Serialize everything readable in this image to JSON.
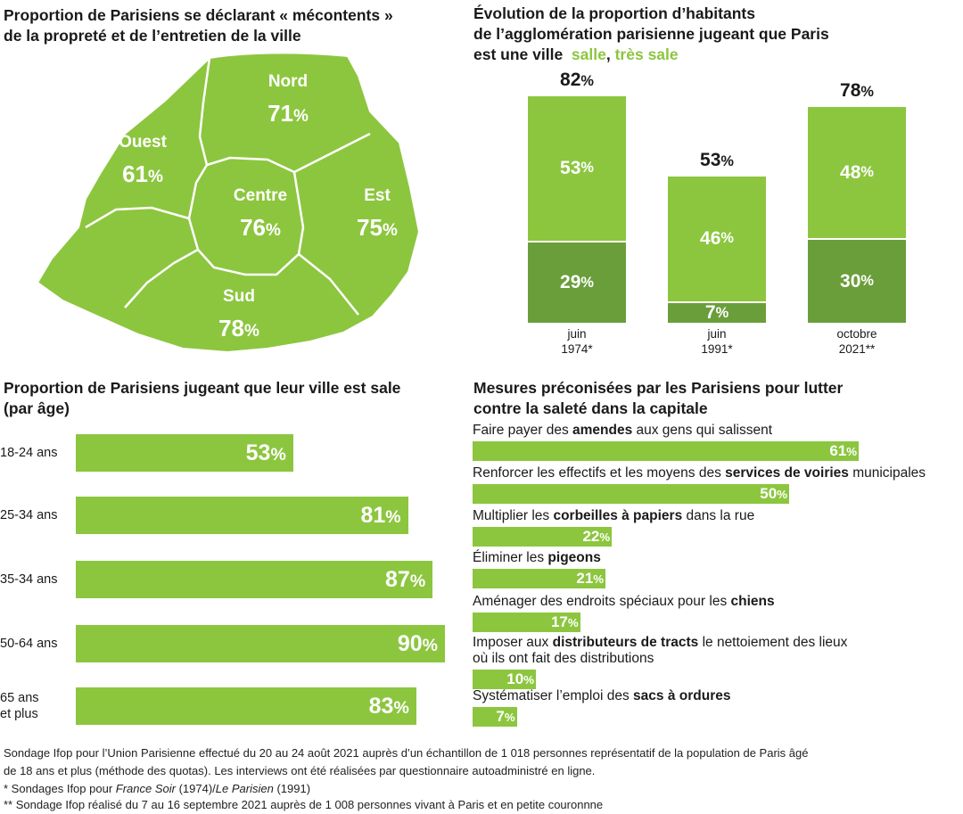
{
  "colors": {
    "light_green": "#8cc63f",
    "dark_green": "#6a9e3a",
    "map_green": "#8cc63f",
    "text": "#1a1a1a"
  },
  "map": {
    "title_line1": "Proportion de Parisiens se déclarant « mécontents »",
    "title_line2": "de la propreté et de l’entretien de la ville",
    "regions": [
      {
        "name": "Nord",
        "value": "71"
      },
      {
        "name": "Ouest",
        "value": "61"
      },
      {
        "name": "Centre",
        "value": "76"
      },
      {
        "name": "Est",
        "value": "75"
      },
      {
        "name": "Sud",
        "value": "78"
      }
    ]
  },
  "evolution": {
    "title_line1": "Évolution de la proportion d’habitants",
    "title_line2": "de l’agglomération parisienne jugeant que Paris",
    "title_line3_prefix": "est une ville",
    "legend_sale": "salle",
    "legend_sep": ",",
    "legend_tres_sale": "très sale"
  },
  "age": {
    "title_line1": "Proportion de Parisiens jugeant que leur ville est sale",
    "title_line2": "(par âge)"
  },
  "measures": {
    "title_line1": "Mesures préconisées par les Parisiens pour lutter",
    "title_line2": "contre la saleté dans la capitale"
  },
  "chart_data": [
    {
      "type": "bar",
      "title": "Évolution de la proportion d’habitants de l’agglomération parisienne jugeant que Paris est une ville salle, très sale",
      "categories": [
        "juin 1974*",
        "juin 1991*",
        "octobre 2021**"
      ],
      "category_lines": [
        [
          "juin",
          "1974*"
        ],
        [
          "juin",
          "1991*"
        ],
        [
          "octobre",
          "2021**"
        ]
      ],
      "totals": [
        82,
        53,
        78
      ],
      "series": [
        {
          "name": "très sale",
          "values": [
            29,
            7,
            30
          ]
        },
        {
          "name": "salle",
          "values": [
            53,
            46,
            48
          ]
        }
      ],
      "stacked": true,
      "ylim": [
        0,
        100
      ]
    },
    {
      "type": "bar",
      "orientation": "horizontal",
      "title": "Proportion de Parisiens jugeant que leur ville est sale (par âge)",
      "categories": [
        "18-24 ans",
        "25-34 ans",
        "35-34 ans",
        "50-64 ans",
        "65 ans et plus"
      ],
      "category_lines": [
        [
          "18-24 ans"
        ],
        [
          "25-34 ans"
        ],
        [
          "35-34 ans"
        ],
        [
          "50-64 ans"
        ],
        [
          "65 ans",
          "et plus"
        ]
      ],
      "values": [
        53,
        81,
        87,
        90,
        83
      ],
      "xlim": [
        0,
        100
      ]
    },
    {
      "type": "bar",
      "orientation": "horizontal",
      "title": "Mesures préconisées par les Parisiens pour lutter contre la saleté dans la capitale",
      "items": [
        {
          "lines": [
            [
              {
                "t": "Faire payer des "
              },
              {
                "t": "amendes",
                "b": true
              },
              {
                "t": " aux gens qui salissent"
              }
            ]
          ],
          "value": 61
        },
        {
          "lines": [
            [
              {
                "t": "Renforcer les effectifs et les moyens des "
              },
              {
                "t": "services de voiries",
                "b": true
              },
              {
                "t": " municipales"
              }
            ]
          ],
          "value": 50
        },
        {
          "lines": [
            [
              {
                "t": "Multiplier les "
              },
              {
                "t": "corbeilles à papiers",
                "b": true
              },
              {
                "t": " dans la rue"
              }
            ]
          ],
          "value": 22
        },
        {
          "lines": [
            [
              {
                "t": "Éliminer les "
              },
              {
                "t": "pigeons",
                "b": true
              }
            ]
          ],
          "value": 21
        },
        {
          "lines": [
            [
              {
                "t": "Aménager des endroits spéciaux pour les "
              },
              {
                "t": "chiens",
                "b": true
              }
            ]
          ],
          "value": 17
        },
        {
          "lines": [
            [
              {
                "t": "Imposer aux "
              },
              {
                "t": "distributeurs de tracts",
                "b": true
              },
              {
                "t": " le nettoiement des lieux"
              }
            ],
            [
              {
                "t": "où ils ont fait des distributions"
              }
            ]
          ],
          "value": 10
        },
        {
          "lines": [
            [
              {
                "t": "Systématiser l’emploi des "
              },
              {
                "t": "sacs à ordures",
                "b": true
              }
            ]
          ],
          "value": 7
        }
      ],
      "xlim": [
        0,
        100
      ]
    }
  ],
  "footnote": {
    "line1": "Sondage Ifop pour l’Union Parisienne effectué du 20 au 24 août 2021 auprès d’un échantillon de 1 018 personnes représentatif de la population de Paris âgé",
    "line2": "de 18 ans et plus (méthode des quotas). Les interviews ont été réalisées par questionnaire autoadministré en ligne.",
    "line3_prefix": "* Sondages Ifop pour ",
    "line3_src1": "France Soir",
    "line3_mid": " (1974)/",
    "line3_src2": "Le Parisien",
    "line3_suffix": " (1991)",
    "line4": "** Sondage Ifop réalisé du 7 au 16 septembre 2021 auprès de 1 008 personnes vivant à Paris et en petite couronnne"
  }
}
